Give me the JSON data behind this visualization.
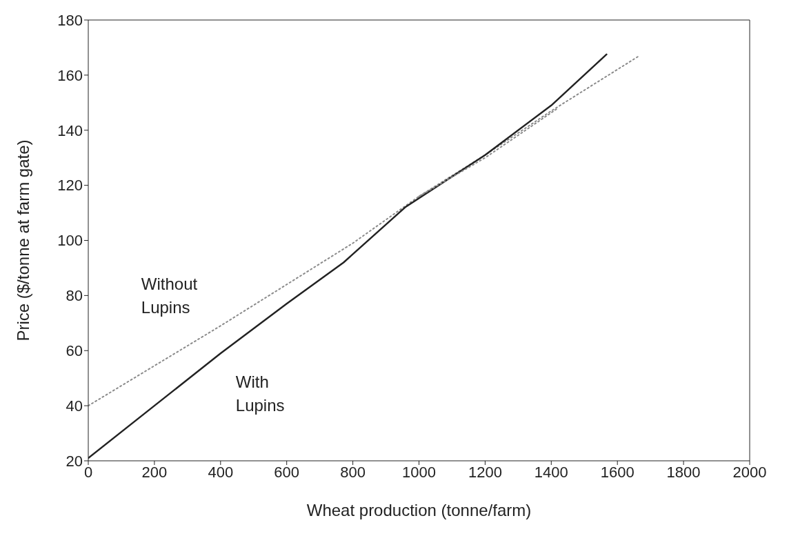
{
  "chart_data": {
    "type": "line",
    "xlabel": "Wheat production (tonne/farm)",
    "ylabel": "Price ($/tonne at farm gate)",
    "xlim": [
      0,
      2000
    ],
    "xticks": [
      0,
      200,
      400,
      600,
      800,
      1000,
      1200,
      1400,
      1600,
      1800,
      2000
    ],
    "ylim": [
      20,
      180
    ],
    "yticks": [
      20,
      40,
      60,
      80,
      100,
      120,
      140,
      160,
      180
    ],
    "marker": "none",
    "series": [
      {
        "name": "Without Lupins",
        "color": "#8a8a8a",
        "line_style": "dotted",
        "x": [
          0,
          400,
          800,
          1000,
          1200,
          1400,
          1666
        ],
        "values": [
          40,
          69,
          99,
          116,
          131,
          147,
          167
        ]
      },
      {
        "name": "With Lupins",
        "color": "#222222",
        "line_style": "solid",
        "x": [
          0,
          200,
          400,
          600,
          772,
          958,
          1200,
          1400,
          1567
        ],
        "values": [
          21,
          40,
          59,
          77,
          92,
          112,
          131,
          149,
          167.5
        ]
      },
      {
        "color": "#8a8a8a",
        "line_style": "dotted",
        "x": [
          1000,
          1200,
          1420
        ],
        "values": [
          116,
          130,
          148
        ]
      }
    ]
  }
}
